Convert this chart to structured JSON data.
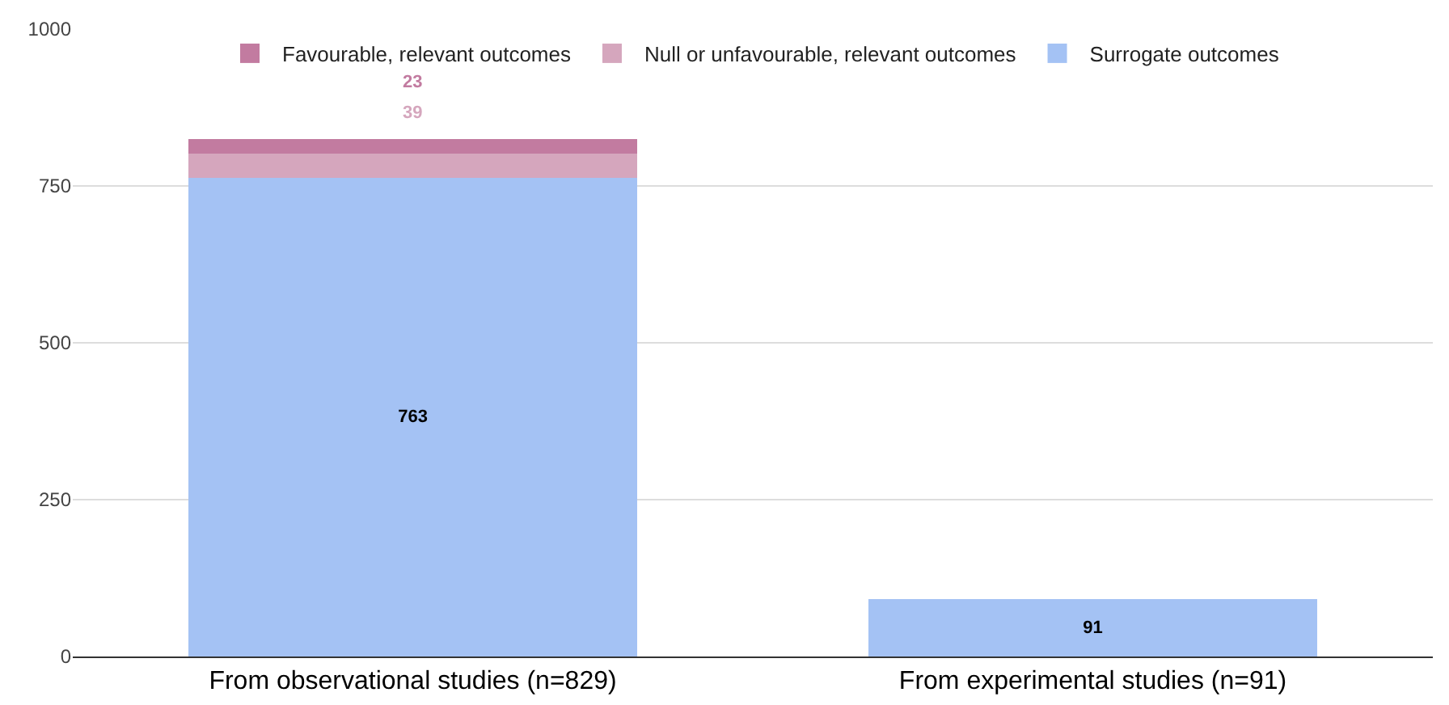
{
  "chart_data": {
    "type": "bar",
    "stacked": true,
    "categories": [
      "From observational studies (n=829)",
      "From experimental studies (n=91)"
    ],
    "series": [
      {
        "name": "Surrogate outcomes",
        "color": "#a4c2f4",
        "values": [
          763,
          91
        ]
      },
      {
        "name": "Null or unfavourable, relevant outcomes",
        "color": "#d5a6bd",
        "values": [
          39,
          null
        ]
      },
      {
        "name": "Favourable, relevant outcomes",
        "color": "#c27ba0",
        "values": [
          23,
          null
        ]
      }
    ],
    "ylim": [
      0,
      1000
    ],
    "yticks": [
      0,
      250,
      500,
      750,
      1000
    ],
    "grid": "y",
    "legend": "top",
    "data_labels": true
  }
}
